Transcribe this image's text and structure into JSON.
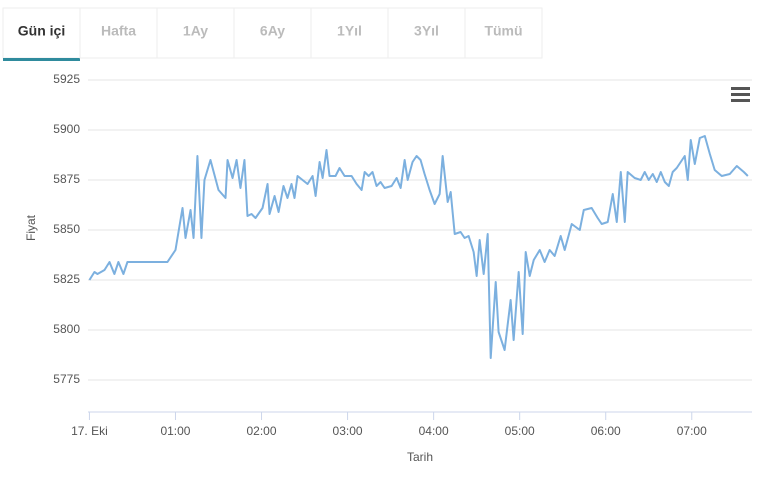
{
  "tabs": {
    "items": [
      "Gün içi",
      "Hafta",
      "1Ay",
      "6Ay",
      "1Yıl",
      "3Yıl",
      "Tümü"
    ],
    "active": 0
  },
  "chart_data": {
    "type": "line",
    "x_label": "Tarih",
    "y_label": "Fiyat",
    "xlim": [
      -1,
      462
    ],
    "ylim": [
      5759,
      5935
    ],
    "xticks": [
      {
        "value": 0,
        "label": "17. Eki"
      },
      {
        "value": 60,
        "label": "01:00"
      },
      {
        "value": 120,
        "label": "02:00"
      },
      {
        "value": 180,
        "label": "03:00"
      },
      {
        "value": 240,
        "label": "04:00"
      },
      {
        "value": 300,
        "label": "05:00"
      },
      {
        "value": 360,
        "label": "06:00"
      },
      {
        "value": 420,
        "label": "07:00"
      }
    ],
    "yticks": [
      5775,
      5800,
      5825,
      5850,
      5875,
      5900,
      5925
    ],
    "grid": true,
    "series": [
      {
        "color": "#7cb0df",
        "x": [
          0,
          3.5,
          5.6,
          10.5,
          14,
          17.4,
          20.2,
          23.7,
          26.5,
          54.4,
          60,
          64.9,
          67,
          70.5,
          72.6,
          75.3,
          78.1,
          80.2,
          84.4,
          90,
          94.9,
          96.3,
          99.8,
          102.6,
          105.3,
          108.1,
          110.2,
          113,
          115.8,
          120.7,
          124.2,
          125.6,
          129.1,
          131.9,
          135.3,
          138.1,
          140.9,
          143,
          145.1,
          148.6,
          152.1,
          155.6,
          157.7,
          160.5,
          162.6,
          165.3,
          167.4,
          171.6,
          174.4,
          177.9,
          182.8,
          186.3,
          189.8,
          191.9,
          194.7,
          197.4,
          200.2,
          203,
          205.8,
          210.7,
          214.2,
          217,
          219.8,
          221.9,
          225.3,
          228.1,
          230.9,
          233.7,
          237.2,
          240.7,
          244.2,
          246.3,
          249.8,
          251.9,
          254.7,
          258.8,
          261.6,
          264.4,
          267.9,
          270,
          272.1,
          274.9,
          277.7,
          279.8,
          283.3,
          285.3,
          289.5,
          293.7,
          295.8,
          299.3,
          302.1,
          304.2,
          307,
          309.8,
          314,
          317.4,
          320.9,
          324.4,
          328.6,
          331.4,
          336.3,
          341.9,
          344.7,
          350.2,
          354.4,
          357.2,
          361.4,
          364.9,
          367.7,
          370.5,
          373.3,
          375.3,
          380.2,
          384.4,
          387.2,
          390,
          392.8,
          395.6,
          398.4,
          401.2,
          404,
          406.7,
          409.5,
          415.1,
          417.2,
          419.3,
          422.1,
          425.6,
          429.1,
          432.6,
          436,
          440.9,
          446.5,
          451.4,
          456.3,
          459.1
        ],
        "values": [
          5825,
          5829,
          5828,
          5830,
          5834,
          5828,
          5834,
          5828,
          5834,
          5834,
          5840,
          5861,
          5846,
          5860,
          5846,
          5887,
          5846,
          5875,
          5885,
          5870,
          5866,
          5885,
          5876,
          5885,
          5871,
          5885,
          5857,
          5858,
          5856,
          5861,
          5873,
          5858,
          5867,
          5859,
          5872,
          5866,
          5873,
          5866,
          5877,
          5875,
          5873,
          5877,
          5867,
          5884,
          5876,
          5890,
          5877,
          5877,
          5881,
          5877,
          5877,
          5873,
          5870,
          5879,
          5877,
          5879,
          5872,
          5874,
          5871,
          5872,
          5876,
          5871,
          5885,
          5875,
          5884,
          5887,
          5885,
          5878,
          5870,
          5863,
          5868,
          5887,
          5864,
          5869,
          5848,
          5849,
          5846,
          5847,
          5839,
          5827,
          5845,
          5828,
          5848,
          5786,
          5824,
          5799,
          5790,
          5815,
          5795,
          5829,
          5798,
          5839,
          5827,
          5835,
          5840,
          5834,
          5840,
          5837,
          5847,
          5840,
          5853,
          5850,
          5860,
          5861,
          5856,
          5853,
          5854,
          5868,
          5854,
          5879,
          5854,
          5879,
          5876,
          5875,
          5879,
          5875,
          5878,
          5874,
          5879,
          5874,
          5872,
          5879,
          5881,
          5887,
          5875,
          5895,
          5883,
          5896,
          5897,
          5888,
          5880,
          5877,
          5878,
          5882,
          5879,
          5877
        ]
      }
    ]
  }
}
